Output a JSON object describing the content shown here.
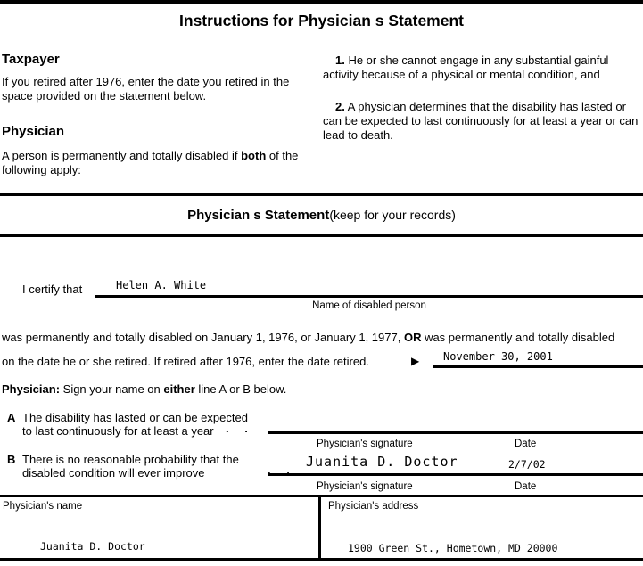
{
  "title": "Instructions for Physician s Statement",
  "instructions": {
    "taxpayer_heading": "Taxpayer",
    "taxpayer_text": "If you retired after 1976, enter the date you retired in the space provided on the statement below.",
    "physician_heading": "Physician",
    "physician_text_prefix": "A person is permanently and totally disabled if ",
    "physician_text_bold": "both",
    "physician_text_suffix": " of the following apply:",
    "item1_num": "1.",
    "item1_text": " He or she cannot engage in any substantial gainful activity because of a physical or mental condition, and",
    "item2_num": "2.",
    "item2_text": " A physician determines that the disability has lasted or can be expected to last continuously for at least a year or can lead to death."
  },
  "statement": {
    "header_bold": "Physician s Statement",
    "header_normal": "(keep for your records)",
    "certify_label": "I certify that",
    "name_value": "Helen A. White",
    "name_caption": "Name of disabled person",
    "para_line1_prefix": "was permanently and totally disabled on January 1, 1976, or January 1, 1977, ",
    "para_line1_bold": "OR",
    "para_line1_suffix": " was permanently and totally disabled",
    "para_line2": "on the date he or she retired. If retired after 1976, enter the date retired.",
    "arrow_icon": "▶",
    "date_retired_value": "November 30, 2001",
    "sign_bold1": "Physician:",
    "sign_text1": " Sign your name on ",
    "sign_bold2": "either",
    "sign_text2": " line A or B below.",
    "lineA": {
      "letter": "A",
      "text": "The disability has lasted or can be expected to last continuously for at least a year",
      "dots": ". .",
      "signature_value": "",
      "date_value": "",
      "signature_caption": "Physician's signature",
      "date_caption": "Date"
    },
    "lineB": {
      "letter": "B",
      "text": "There is no reasonable probability that the disabled condition will ever improve",
      "dots": ". .",
      "signature_value": "Juanita D. Doctor",
      "date_value": "2/7/02",
      "signature_caption": "Physician's signature",
      "date_caption": "Date"
    }
  },
  "footer": {
    "name_label": "Physician's name",
    "name_value": "Juanita D. Doctor",
    "address_label": "Physician's address",
    "address_value": "1900 Green St., Hometown, MD 20000"
  }
}
